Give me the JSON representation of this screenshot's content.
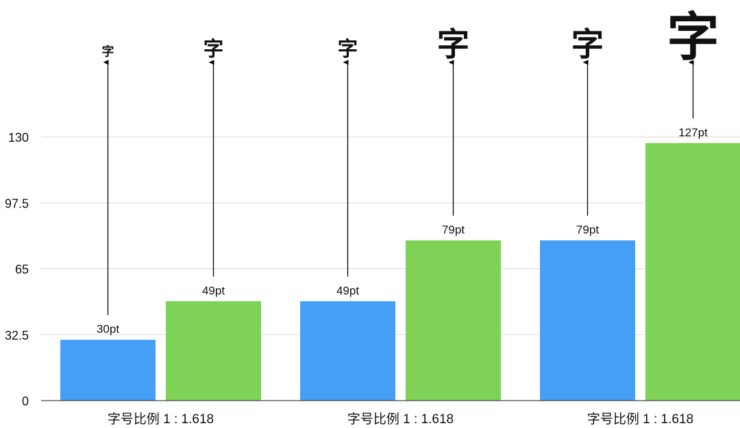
{
  "chart_data": {
    "type": "bar",
    "categories": [
      "字号比例 1 : 1.618",
      "字号比例 1 : 1.618",
      "字号比例 1 : 1.618"
    ],
    "series": [
      {
        "values": [
          30,
          49,
          79
        ],
        "color": "#459ff5"
      },
      {
        "values": [
          49,
          79,
          127
        ],
        "color": "#7ed357"
      }
    ],
    "data_labels": [
      [
        "30pt",
        "49pt",
        "79pt"
      ],
      [
        "49pt",
        "79pt",
        "127pt"
      ]
    ],
    "annotation_glyph": "字",
    "yticks": [
      "0",
      "32.5",
      "65",
      "97.5",
      "130"
    ],
    "ytick_values": [
      0,
      32.5,
      65,
      97.5,
      130
    ],
    "ylim": [
      0,
      130
    ],
    "grid": true,
    "title": "",
    "xlabel": "",
    "ylabel": ""
  }
}
